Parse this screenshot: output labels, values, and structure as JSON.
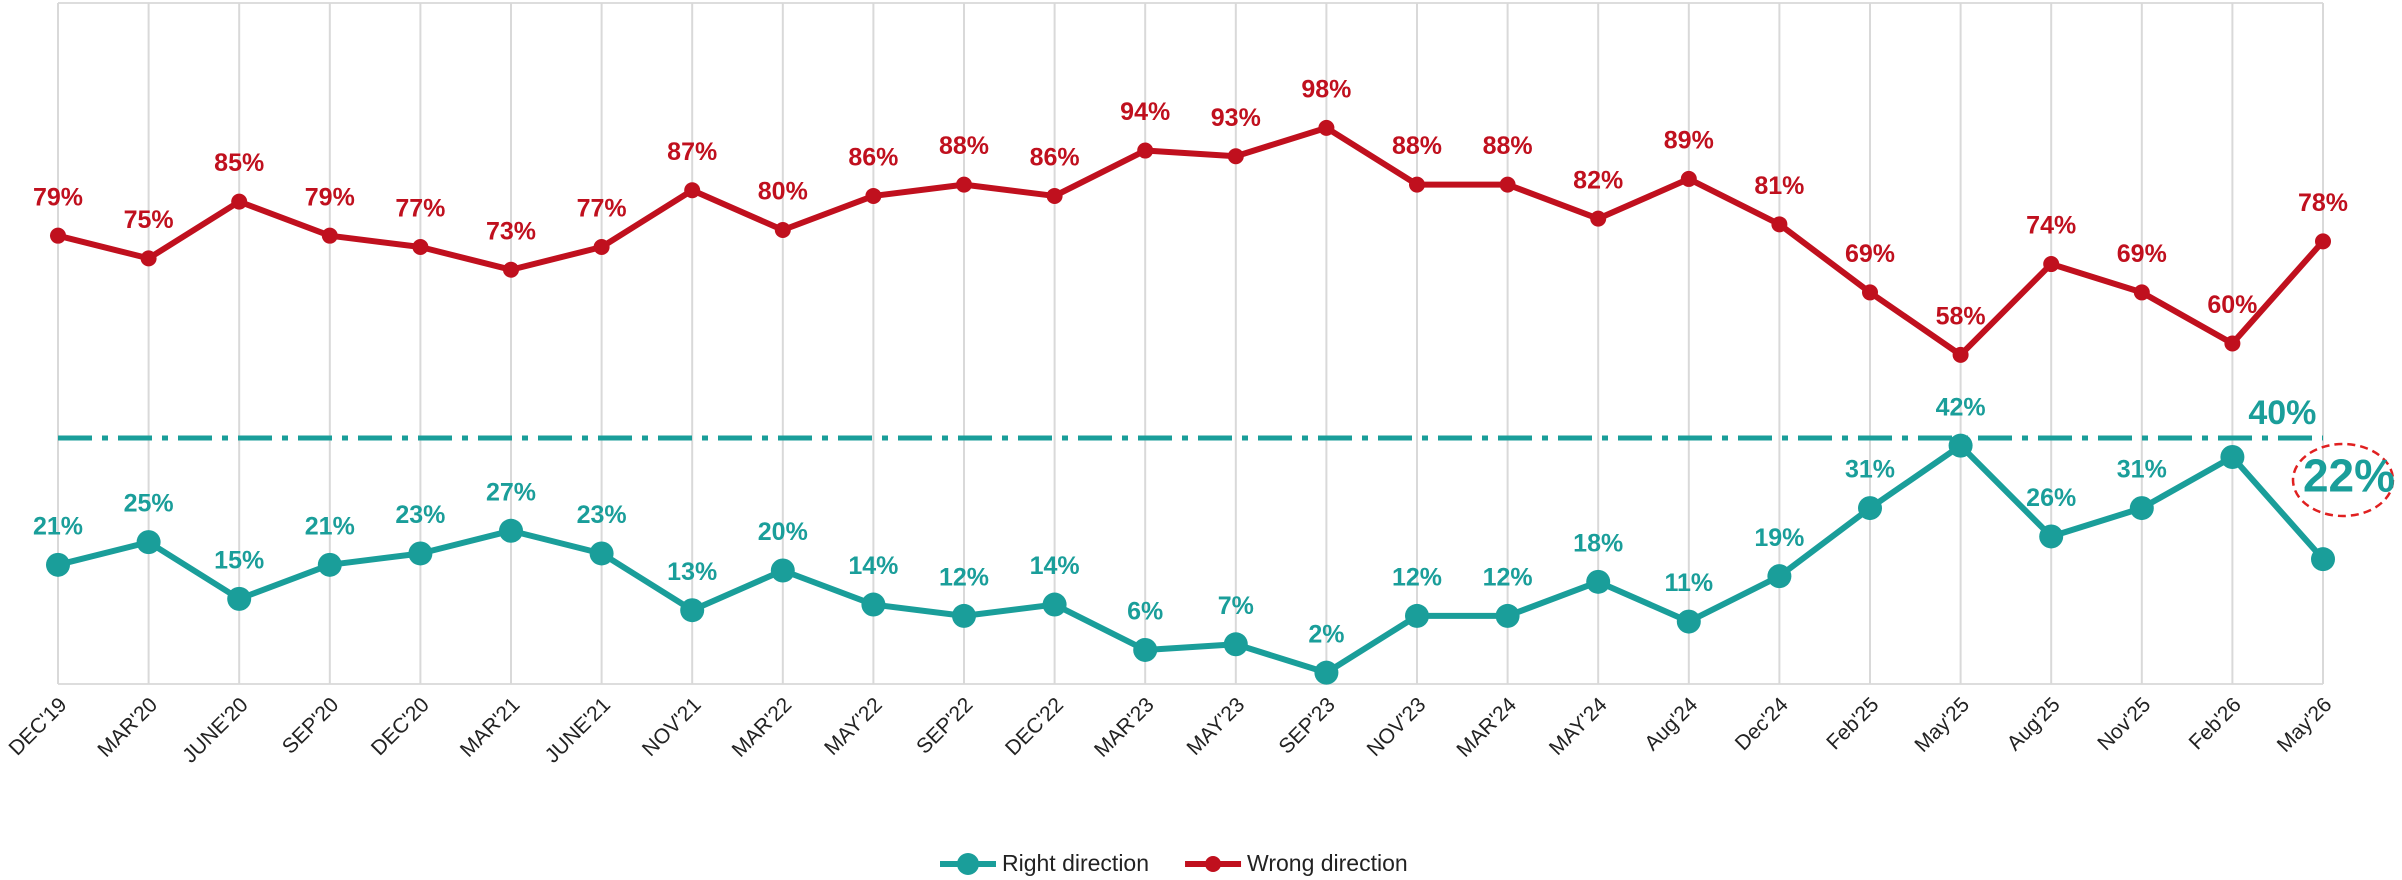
{
  "chart_data": {
    "type": "line",
    "categories": [
      "DEC'19",
      "MAR'20",
      "JUNE'20",
      "SEP'20",
      "DEC'20",
      "MAR'21",
      "JUNE'21",
      "NOV'21",
      "MAR'22",
      "MAY'22",
      "SEP'22",
      "DEC'22",
      "MAR'23",
      "MAY'23",
      "SEP'23",
      "NOV'23",
      "MAR'24",
      "MAY'24",
      "Aug'24",
      "Dec'24",
      "Feb'25",
      "May'25",
      "Aug'25",
      "Nov'25",
      "Feb'26",
      "May'26"
    ],
    "series": [
      {
        "name": "Right direction",
        "color": "#1a9e9a",
        "values": [
          21,
          25,
          15,
          21,
          23,
          27,
          23,
          13,
          20,
          14,
          12,
          14,
          6,
          7,
          2,
          12,
          12,
          18,
          11,
          19,
          31,
          42,
          26,
          31,
          40,
          22
        ],
        "value_labels": [
          "21%",
          "25%",
          "15%",
          "21%",
          "23%",
          "27%",
          "23%",
          "13%",
          "20%",
          "14%",
          "12%",
          "14%",
          "6%",
          "7%",
          "2%",
          "12%",
          "12%",
          "18%",
          "11%",
          "19%",
          "31%",
          "42%",
          "26%",
          "31%",
          "40%",
          "22%"
        ]
      },
      {
        "name": "Wrong direction",
        "color": "#c0101e",
        "values": [
          79,
          75,
          85,
          79,
          77,
          73,
          77,
          87,
          80,
          86,
          88,
          86,
          94,
          93,
          98,
          88,
          88,
          82,
          89,
          81,
          69,
          58,
          74,
          69,
          60,
          78
        ],
        "value_labels": [
          "79%",
          "75%",
          "85%",
          "79%",
          "77%",
          "73%",
          "77%",
          "87%",
          "80%",
          "86%",
          "88%",
          "86%",
          "94%",
          "93%",
          "98%",
          "88%",
          "88%",
          "82%",
          "89%",
          "81%",
          "69%",
          "58%",
          "74%",
          "69%",
          "60%",
          "78%"
        ]
      }
    ],
    "ylim": [
      0,
      120
    ],
    "grid": true,
    "legend": "bottom"
  }
}
